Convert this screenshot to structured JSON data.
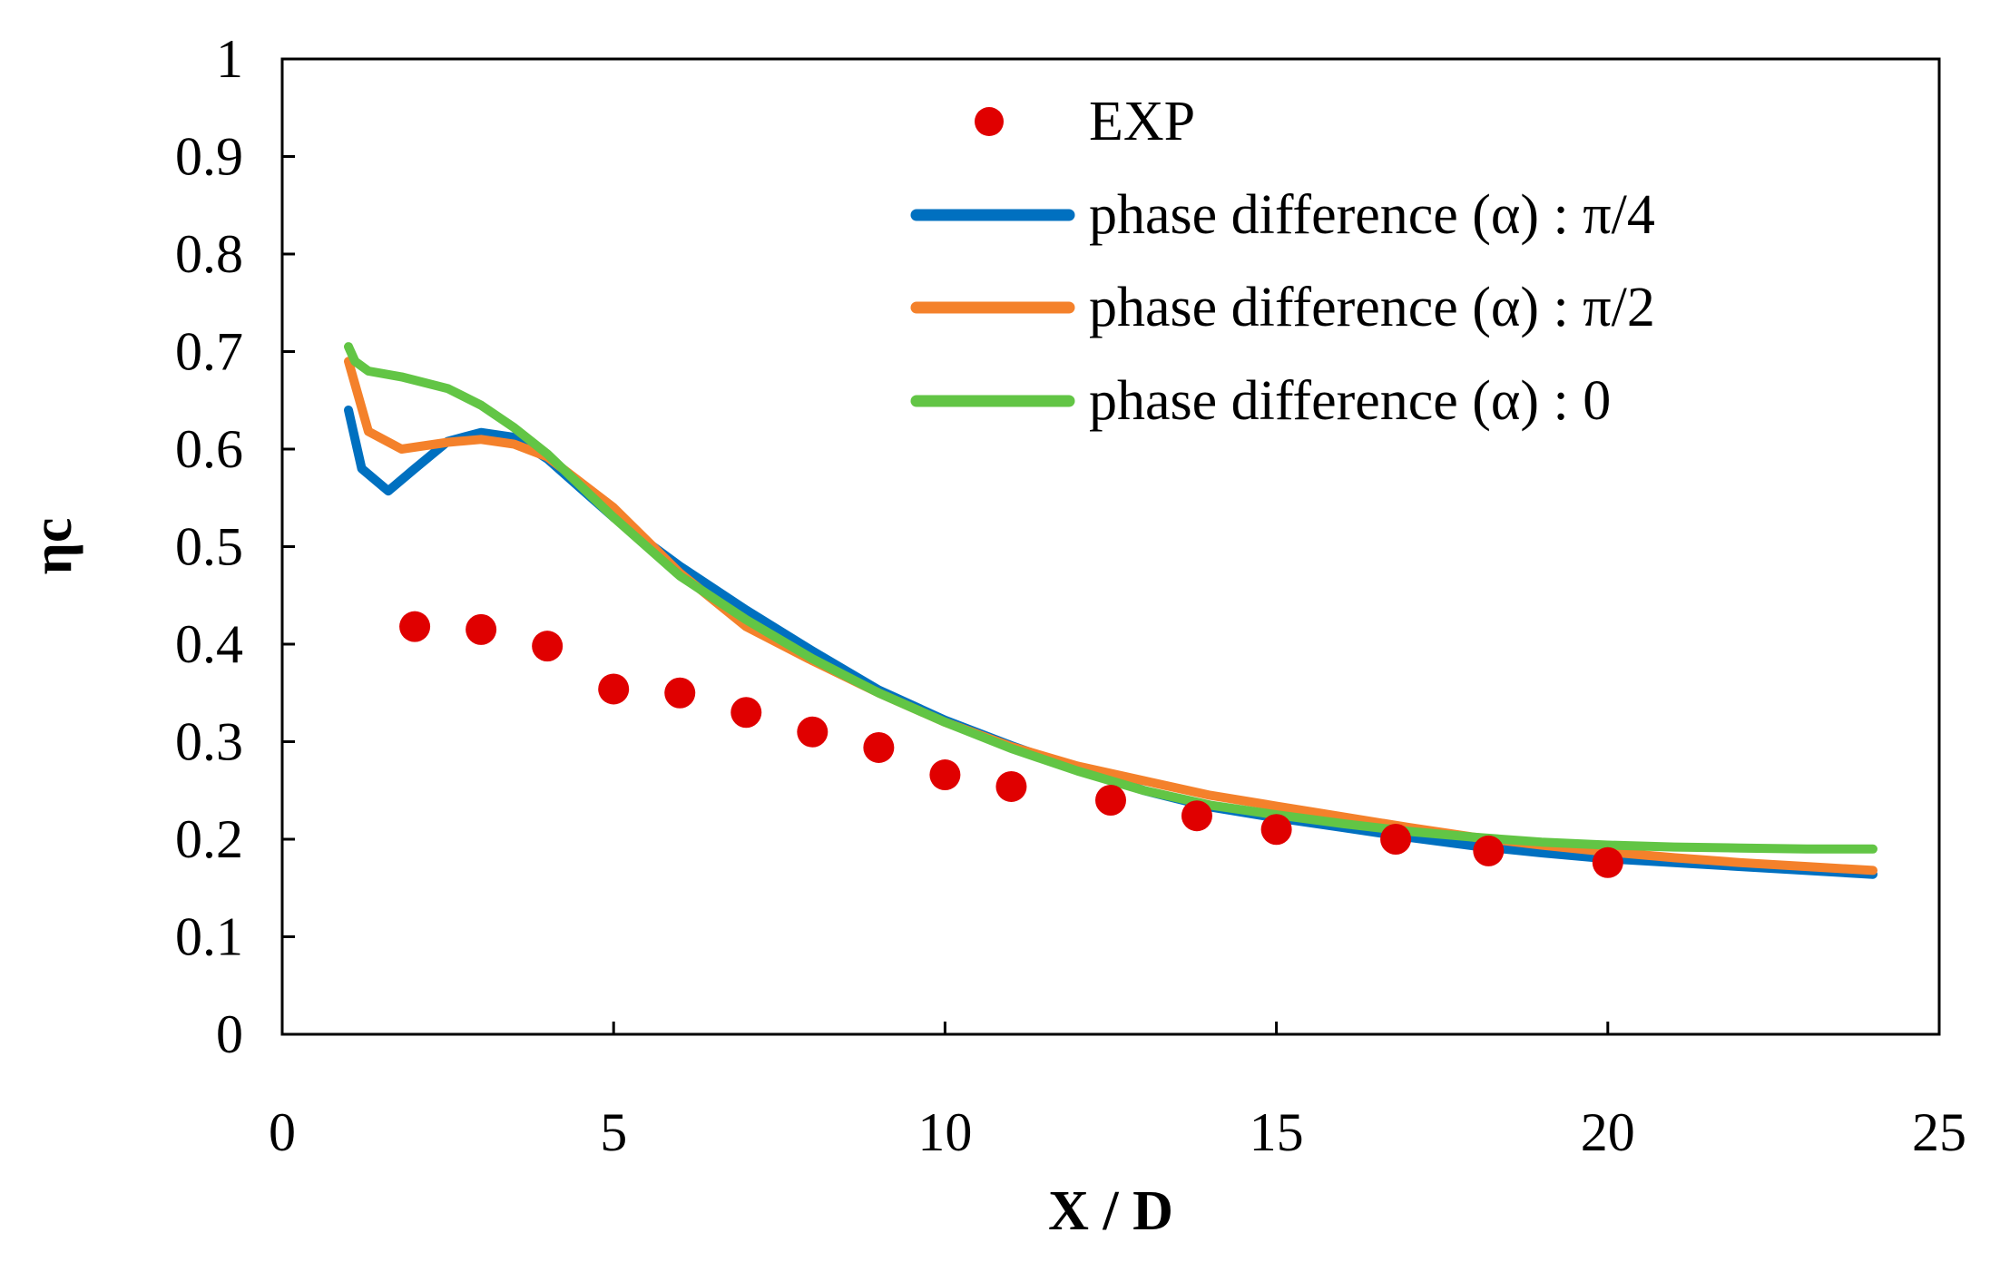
{
  "chart_data": {
    "type": "line",
    "title": "",
    "xlabel": "X / D",
    "ylabel": "ηc",
    "xlim": [
      0,
      25
    ],
    "ylim": [
      0,
      1
    ],
    "xticks": [
      "0",
      "5",
      "10",
      "15",
      "20",
      "25"
    ],
    "yticks": [
      "0",
      "0.1",
      "0.2",
      "0.3",
      "0.4",
      "0.5",
      "0.6",
      "0.7",
      "0.8",
      "0.9",
      "1"
    ],
    "grid": false,
    "legend_position": "top-right",
    "series": [
      {
        "name": "EXP",
        "kind": "scatter",
        "color": "#e00000",
        "x": [
          2,
          3,
          4,
          5,
          6,
          7,
          8,
          9,
          10,
          11,
          12.5,
          13.8,
          15,
          16.8,
          18.2,
          20
        ],
        "y": [
          0.418,
          0.415,
          0.398,
          0.354,
          0.35,
          0.33,
          0.31,
          0.294,
          0.266,
          0.254,
          0.24,
          0.224,
          0.21,
          0.2,
          0.188,
          0.176
        ]
      },
      {
        "name": "phase difference (α) : π/4",
        "kind": "line",
        "color": "#0070c0",
        "x": [
          1,
          1.2,
          1.6,
          2,
          2.5,
          3,
          3.5,
          4,
          5,
          6,
          7,
          8,
          9,
          10,
          11,
          12,
          13,
          14,
          15,
          16,
          17,
          18,
          19,
          20,
          21,
          22,
          23,
          24
        ],
        "y": [
          0.64,
          0.58,
          0.557,
          0.58,
          0.608,
          0.617,
          0.612,
          0.59,
          0.53,
          0.48,
          0.435,
          0.393,
          0.353,
          0.322,
          0.296,
          0.272,
          0.25,
          0.233,
          0.222,
          0.212,
          0.202,
          0.193,
          0.186,
          0.18,
          0.176,
          0.172,
          0.168,
          0.164
        ]
      },
      {
        "name": "phase difference (α) : π/2",
        "kind": "line",
        "color": "#f4812b",
        "x": [
          1,
          1.3,
          1.8,
          2.5,
          3,
          3.5,
          4,
          5,
          6,
          7,
          8,
          9,
          10,
          11,
          12,
          13,
          14,
          15,
          16,
          17,
          18,
          19,
          20,
          21,
          22,
          23,
          24
        ],
        "y": [
          0.69,
          0.618,
          0.6,
          0.607,
          0.61,
          0.605,
          0.592,
          0.54,
          0.473,
          0.418,
          0.383,
          0.35,
          0.32,
          0.295,
          0.275,
          0.26,
          0.245,
          0.234,
          0.223,
          0.212,
          0.202,
          0.194,
          0.187,
          0.181,
          0.176,
          0.172,
          0.168
        ]
      },
      {
        "name": "phase difference (α) : 0",
        "kind": "line",
        "color": "#62c545",
        "x": [
          1,
          1.1,
          1.3,
          1.8,
          2.5,
          3,
          3.5,
          4,
          5,
          6,
          7,
          8,
          9,
          10,
          11,
          12,
          13,
          14,
          15,
          16,
          17,
          18,
          19,
          20,
          21,
          22,
          23,
          24
        ],
        "y": [
          0.705,
          0.69,
          0.68,
          0.674,
          0.662,
          0.645,
          0.622,
          0.595,
          0.53,
          0.47,
          0.425,
          0.385,
          0.35,
          0.32,
          0.293,
          0.27,
          0.25,
          0.235,
          0.225,
          0.216,
          0.208,
          0.202,
          0.197,
          0.194,
          0.192,
          0.191,
          0.19,
          0.19
        ]
      }
    ]
  }
}
